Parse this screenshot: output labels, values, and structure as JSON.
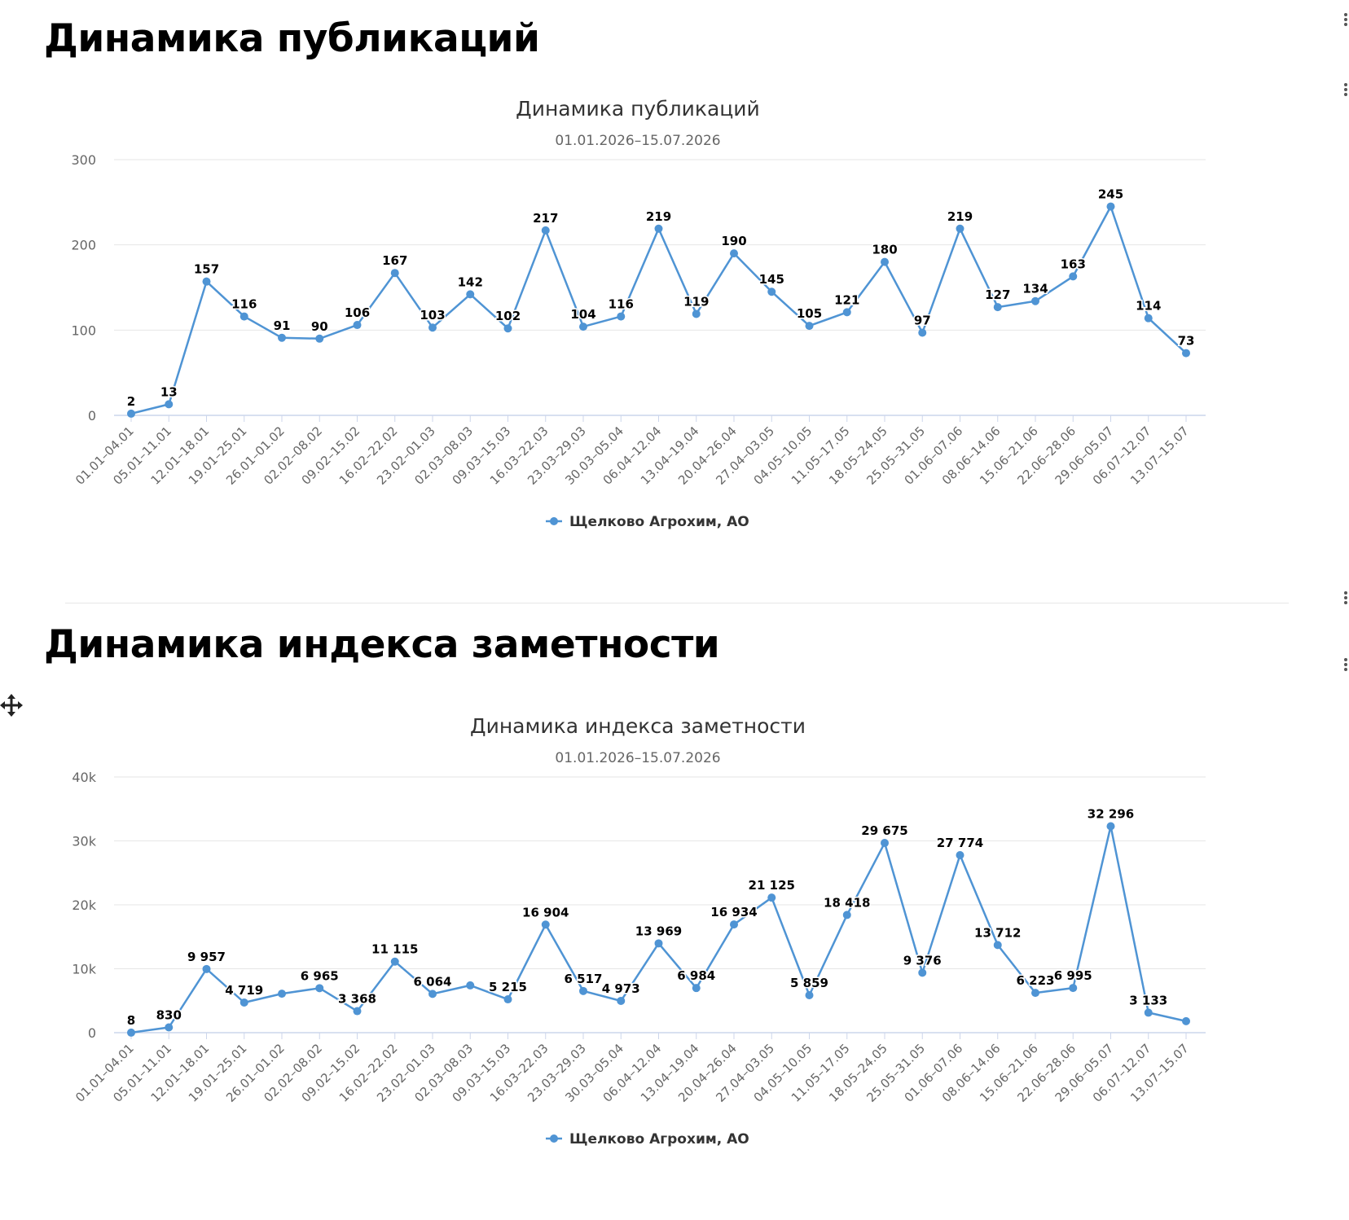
{
  "sections": [
    {
      "heading": "Динамика публикаций"
    },
    {
      "heading": "Динамика индекса заметности"
    }
  ],
  "icons": {
    "menu": "more-vertical-icon",
    "move": "move-arrows-icon"
  },
  "colors": {
    "series": "#4f94d4",
    "grid": "#e6e6e6",
    "axis": "#ccd6eb"
  },
  "chart_data": [
    {
      "type": "line",
      "title": "Динамика публикаций",
      "subtitle": "01.01.2026–15.07.2026",
      "categories": [
        "01.01–04.01",
        "05.01–11.01",
        "12.01–18.01",
        "19.01–25.01",
        "26.01–01.02",
        "02.02–08.02",
        "09.02–15.02",
        "16.02–22.02",
        "23.02–01.03",
        "02.03–08.03",
        "09.03–15.03",
        "16.03–22.03",
        "23.03–29.03",
        "30.03–05.04",
        "06.04–12.04",
        "13.04–19.04",
        "20.04–26.04",
        "27.04–03.05",
        "04.05–10.05",
        "11.05–17.05",
        "18.05–24.05",
        "25.05–31.05",
        "01.06–07.06",
        "08.06–14.06",
        "15.06–21.06",
        "22.06–28.06",
        "29.06–05.07",
        "06.07–12.07",
        "13.07–15.07"
      ],
      "series": [
        {
          "name": "Щелково Агрохим, АО",
          "values": [
            2,
            13,
            157,
            116,
            91,
            90,
            106,
            167,
            103,
            142,
            102,
            217,
            104,
            116,
            219,
            119,
            190,
            145,
            105,
            121,
            180,
            97,
            219,
            127,
            134,
            163,
            245,
            114,
            73
          ],
          "labels": [
            "2",
            "13",
            "157",
            "116",
            "91",
            "90",
            "106",
            "167",
            "103",
            "142",
            "102",
            "217",
            "104",
            "116",
            "219",
            "119",
            "190",
            "145",
            "105",
            "121",
            "180",
            "97",
            "219",
            "127",
            "134",
            "163",
            "245",
            "114",
            "73"
          ]
        }
      ],
      "yticks": [
        0,
        100,
        200,
        300
      ],
      "ytick_labels": [
        "0",
        "100",
        "200",
        "300"
      ],
      "ylim": [
        0,
        300
      ],
      "grid": true,
      "legend": "bottom-center"
    },
    {
      "type": "line",
      "title": "Динамика индекса заметности",
      "subtitle": "01.01.2026–15.07.2026",
      "categories": [
        "01.01–04.01",
        "05.01–11.01",
        "12.01–18.01",
        "19.01–25.01",
        "26.01–01.02",
        "02.02–08.02",
        "09.02–15.02",
        "16.02–22.02",
        "23.02–01.03",
        "02.03–08.03",
        "09.03–15.03",
        "16.03–22.03",
        "23.03–29.03",
        "30.03–05.04",
        "06.04–12.04",
        "13.04–19.04",
        "20.04–26.04",
        "27.04–03.05",
        "04.05–10.05",
        "11.05–17.05",
        "18.05–24.05",
        "25.05–31.05",
        "01.06–07.06",
        "08.06–14.06",
        "15.06–21.06",
        "22.06–28.06",
        "29.06–05.07",
        "06.07–12.07",
        "13.07–15.07"
      ],
      "series": [
        {
          "name": "Щелково Агрохим, АО",
          "values": [
            8,
            830,
            9957,
            4719,
            6100,
            6965,
            3368,
            11115,
            6064,
            7400,
            5215,
            16904,
            6517,
            4973,
            13969,
            6984,
            16934,
            21125,
            5859,
            18418,
            29675,
            9376,
            27774,
            13712,
            6223,
            6995,
            32296,
            3133,
            1800
          ],
          "labels": [
            "8",
            "830",
            "9 957",
            "4 719",
            "",
            "6 965",
            "3 368",
            "11 115",
            "6 064",
            "",
            "5 215",
            "16 904",
            "6 517",
            "4 973",
            "13 969",
            "6 984",
            "16 934",
            "21 125",
            "5 859",
            "18 418",
            "29 675",
            "9 376",
            "27 774",
            "13 712",
            "6 223",
            "6 995",
            "32 296",
            "3 133",
            ""
          ]
        }
      ],
      "yticks": [
        0,
        10000,
        20000,
        30000,
        40000
      ],
      "ytick_labels": [
        "0",
        "10k",
        "20k",
        "30k",
        "40k"
      ],
      "ylim": [
        0,
        40000
      ],
      "grid": true,
      "legend": "bottom-center"
    }
  ]
}
